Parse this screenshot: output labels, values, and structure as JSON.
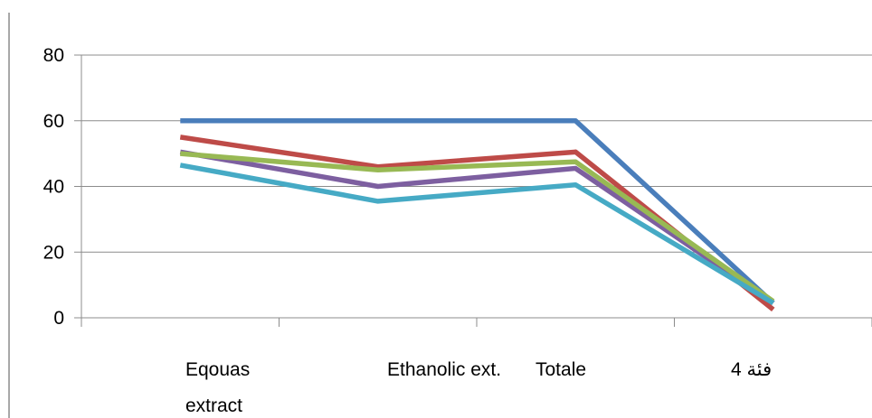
{
  "chart_data": {
    "type": "line",
    "categories": [
      "Eqouas extract",
      "Ethanolic ext.",
      "Totale",
      "فئة 4"
    ],
    "series": [
      {
        "color": "#4a7ebb",
        "values": [
          60,
          60,
          60,
          4.5
        ]
      },
      {
        "color": "#be4b48",
        "values": [
          55,
          46,
          50.5,
          2.5
        ]
      },
      {
        "color": "#7d5fa0",
        "values": [
          50.5,
          40,
          45.5,
          4.5
        ]
      },
      {
        "color": "#98b954",
        "values": [
          50,
          45,
          47.5,
          5
        ]
      },
      {
        "color": "#46aac5",
        "values": [
          46.5,
          35.5,
          40.5,
          4.5
        ]
      }
    ],
    "ylim": [
      0,
      80
    ],
    "yticks": [
      0,
      20,
      40,
      60,
      80
    ],
    "grid": true,
    "legend": "none"
  }
}
